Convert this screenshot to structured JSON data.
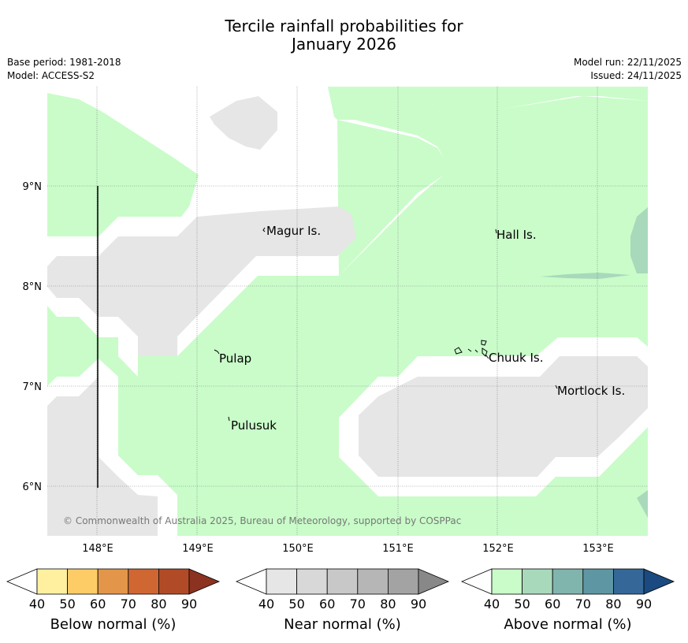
{
  "title_line1": "Tercile rainfall probabilities for",
  "title_line2": "January 2026",
  "base_period": "Base period: 1981-2018",
  "model": "Model: ACCESS-S2",
  "model_run": "Model run: 22/11/2025",
  "issued": "Issued: 24/11/2025",
  "map": {
    "lat_labels": [
      "9°N",
      "8°N",
      "7°N",
      "6°N"
    ],
    "lon_labels": [
      "148°E",
      "149°E",
      "150°E",
      "151°E",
      "152°E",
      "153°E"
    ],
    "places": [
      {
        "name": "Magur Is."
      },
      {
        "name": "Hall Is."
      },
      {
        "name": "Pulap"
      },
      {
        "name": "Chuuk Is."
      },
      {
        "name": "Mortlock Is."
      },
      {
        "name": "Pulusuk"
      }
    ],
    "copyright": "© Commonwealth of Australia 2025, Bureau of Meteorology, supported by COSPPac"
  },
  "colorbars": [
    {
      "label": "Below normal (%)",
      "ticks": [
        "40",
        "50",
        "60",
        "70",
        "80",
        "90"
      ],
      "colors": [
        "#fff0a0",
        "#fdcc66",
        "#e39649",
        "#d06632",
        "#b14b27",
        "#8c3220"
      ]
    },
    {
      "label": "Near normal (%)",
      "ticks": [
        "40",
        "50",
        "60",
        "70",
        "80",
        "90"
      ],
      "colors": [
        "#e6e6e6",
        "#d8d8d8",
        "#c8c8c8",
        "#b6b6b6",
        "#a3a3a3",
        "#888888"
      ]
    },
    {
      "label": "Above normal (%)",
      "ticks": [
        "40",
        "50",
        "60",
        "70",
        "80",
        "90"
      ],
      "colors": [
        "#c9fcc9",
        "#a8d9bb",
        "#80b5ae",
        "#5e97a3",
        "#356799",
        "#1a4a7f"
      ]
    }
  ]
}
